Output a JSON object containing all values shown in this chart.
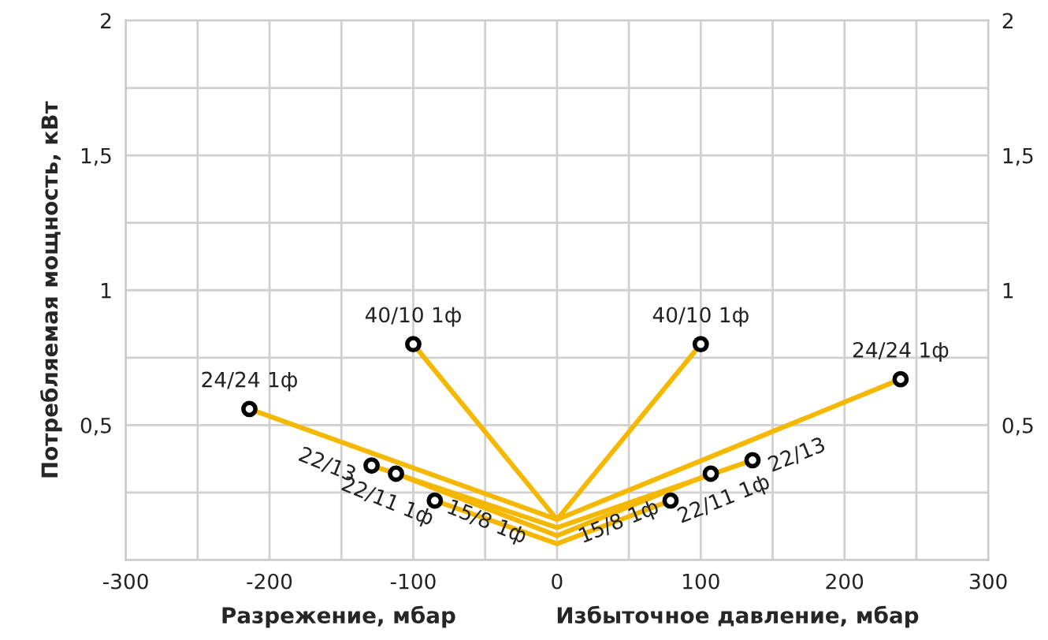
{
  "chart_data": {
    "type": "line",
    "ylabel": "Потребляемая мощность, кВт",
    "xlabel": "Разрежение, мбар",
    "annotations": [
      "Избыточное давление, мбар"
    ],
    "series": [
      {
        "name": "40/10 1ф",
        "color": "#f5b800",
        "x": [
          -100,
          0,
          100
        ],
        "values": [
          0.8,
          0.15,
          0.8
        ]
      },
      {
        "name": "24/24 1ф",
        "color": "#f5b800",
        "x": [
          -214,
          0,
          239
        ],
        "values": [
          0.56,
          0.15,
          0.67
        ]
      },
      {
        "name": "22/13",
        "color": "#f5b800",
        "x": [
          -129,
          0,
          136
        ],
        "values": [
          0.35,
          0.12,
          0.37
        ]
      },
      {
        "name": "22/11 1ф",
        "color": "#f5b800",
        "x": [
          -112,
          0,
          107
        ],
        "values": [
          0.32,
          0.09,
          0.32
        ]
      },
      {
        "name": "15/8 1ф",
        "color": "#f5b800",
        "x": [
          -85,
          0,
          79
        ],
        "values": [
          0.22,
          0.06,
          0.22
        ]
      }
    ],
    "xlim": [
      -300,
      300
    ],
    "xticks": [
      -300,
      {
        "value": -250,
        "label": null
      },
      -200,
      {
        "value": -150,
        "label": null
      },
      -100,
      {
        "value": -50,
        "label": null
      },
      0,
      {
        "value": 50,
        "label": null
      },
      100,
      {
        "value": 150,
        "label": null
      },
      200,
      {
        "value": 250,
        "label": null
      },
      300
    ],
    "ylim": [
      0,
      2
    ],
    "yticks": [
      {
        "value": 0,
        "label": null
      },
      {
        "value": 0.25,
        "label": null
      },
      {
        "value": 0.5,
        "label": "0,5"
      },
      {
        "value": 0.75,
        "label": null
      },
      1,
      {
        "value": 1.25,
        "label": null
      },
      {
        "value": 1.5,
        "label": "1,5"
      },
      {
        "value": 1.75,
        "label": null
      },
      2
    ],
    "y2lim": [
      0,
      2
    ],
    "y2ticks": [
      {
        "value": 0,
        "label": null
      },
      {
        "value": 0.25,
        "label": null
      },
      {
        "value": 0.5,
        "label": "0,5"
      },
      {
        "value": 0.75,
        "label": null
      },
      1,
      {
        "value": 1.25,
        "label": null
      },
      {
        "value": 1.5,
        "label": "1,5"
      },
      {
        "value": 1.75,
        "label": null
      },
      2
    ],
    "grid": true,
    "marker": "circle",
    "line_style": "solid",
    "legend": false
  }
}
